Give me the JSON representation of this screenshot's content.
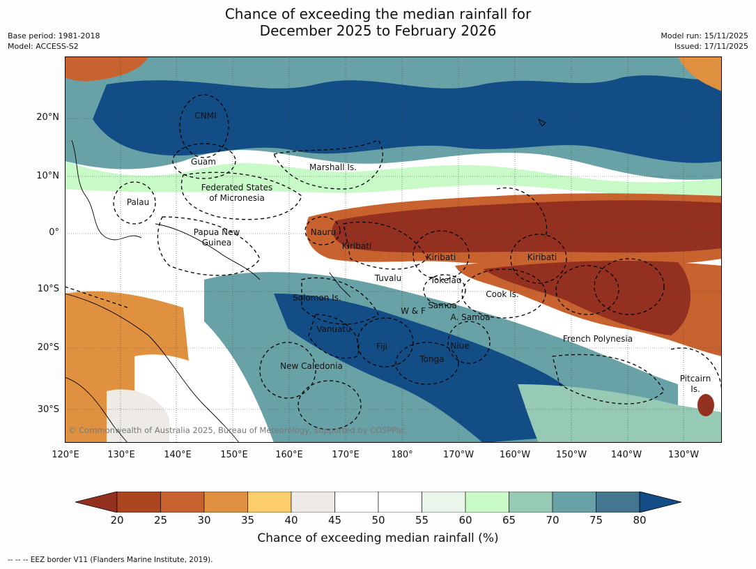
{
  "title_line1": "Chance of exceeding the median rainfall for",
  "title_line2": "December 2025 to February 2026",
  "meta_left": [
    "Base period: 1981-2018",
    "Model: ACCESS-S2"
  ],
  "meta_right": [
    "Model run: 15/11/2025",
    "Issued: 17/11/2025"
  ],
  "map": {
    "lon_ticks": [
      "120°E",
      "130°E",
      "140°E",
      "150°E",
      "160°E",
      "170°E",
      "180°",
      "170°W",
      "160°W",
      "150°W",
      "140°W",
      "130°W"
    ],
    "lat_ticks": [
      "20°N",
      "10°N",
      "0°",
      "10°S",
      "20°S",
      "30°S"
    ],
    "places": [
      "CNMI",
      "Guam",
      "Marshall Is.",
      "Federated States",
      "of Micronesia",
      "Palau",
      "Nauru",
      "Papua New",
      "Guinea",
      "Kiribati",
      "Kiribati",
      "Kiribati",
      "Tuvalu",
      "Tokelau",
      "Cook Is.",
      "Solomon Is.",
      "W & F",
      "Samoa",
      "A. Samoa",
      "Vanuatu",
      "Fiji",
      "Niue",
      "Tonga",
      "French Polynesia",
      "New Caledonia",
      "Pitcairn",
      "Is."
    ],
    "copyright": "© Commonwealth of Australia 2025, Bureau of Meteorology, supported by COSPPac"
  },
  "colorbar": {
    "ticks": [
      "20",
      "25",
      "30",
      "35",
      "40",
      "45",
      "50",
      "55",
      "60",
      "65",
      "70",
      "75",
      "80"
    ],
    "under_color": "#943020",
    "over_color": "#124d85",
    "colors": [
      "#ac4621",
      "#c8632f",
      "#e0913f",
      "#fccd6b",
      "#eeebe6",
      "#ffffff",
      "#ffffff",
      "#e9f6e9",
      "#c8fac8",
      "#97cab4",
      "#69a2a6",
      "#44778f"
    ],
    "label": "Chance of exceeding median rainfall (%)"
  },
  "footnote": "-- -- -- EEZ border V11 (Flanders Marine Institute, 2019)."
}
